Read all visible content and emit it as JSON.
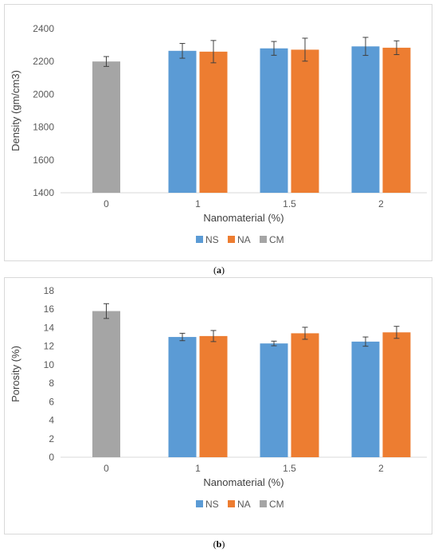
{
  "charts": [
    {
      "caption": "a",
      "chart_data": {
        "type": "bar",
        "categories": [
          "0",
          "1",
          "1.5",
          "2"
        ],
        "series": [
          {
            "name": "NS",
            "color": "#5b9bd5",
            "values": [
              null,
              2265,
              2280,
              2292
            ],
            "errors": [
              null,
              45,
              42,
              55
            ]
          },
          {
            "name": "NA",
            "color": "#ed7d31",
            "values": [
              null,
              2260,
              2272,
              2284
            ],
            "errors": [
              null,
              68,
              70,
              42
            ]
          },
          {
            "name": "CM",
            "color": "#a5a5a5",
            "values": [
              2200,
              null,
              null,
              null
            ],
            "errors": [
              30,
              null,
              null,
              null
            ]
          }
        ],
        "xlabel": "Nanomaterial (%)",
        "ylabel": "Density (gm/cm3)",
        "ylim": [
          1400,
          2400
        ],
        "yticks": [
          1400,
          1600,
          1800,
          2000,
          2200,
          2400
        ],
        "grid": false,
        "legend": "bottom"
      }
    },
    {
      "caption": "b",
      "chart_data": {
        "type": "bar",
        "categories": [
          "0",
          "1",
          "1.5",
          "2"
        ],
        "series": [
          {
            "name": "NS",
            "color": "#5b9bd5",
            "values": [
              null,
              13.0,
              12.3,
              12.5
            ],
            "errors": [
              null,
              0.4,
              0.25,
              0.5
            ]
          },
          {
            "name": "NA",
            "color": "#ed7d31",
            "values": [
              null,
              13.1,
              13.4,
              13.5
            ],
            "errors": [
              null,
              0.6,
              0.65,
              0.65
            ]
          },
          {
            "name": "CM",
            "color": "#a5a5a5",
            "values": [
              15.8,
              null,
              null,
              null
            ],
            "errors": [
              0.8,
              null,
              null,
              null
            ]
          }
        ],
        "xlabel": "Nanomaterial (%)",
        "ylabel": "Porosity (%)",
        "ylim": [
          0,
          18
        ],
        "yticks": [
          0,
          2,
          4,
          6,
          8,
          10,
          12,
          14,
          16,
          18
        ],
        "grid": false,
        "legend": "bottom"
      }
    }
  ]
}
